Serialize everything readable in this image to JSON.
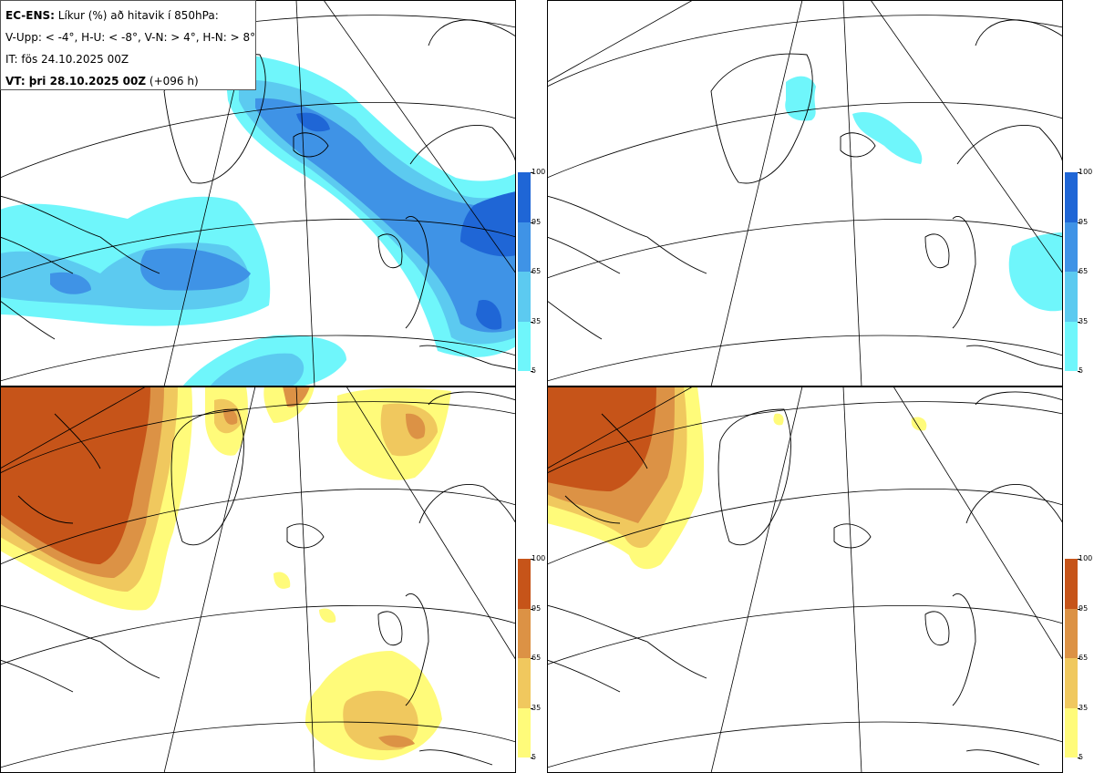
{
  "legend": {
    "line1_bold": "EC-ENS:",
    "line1_text": " Líkur (%) að hitavik í 850hPa:",
    "line2": "V-Upp: < -4°, H-U: < -8°, V-N: > 4°, H-N: > 8°",
    "line3": "IT: fös 24.10.2025 00Z",
    "line4_bold": "VT: þri 28.10.2025 00Z",
    "line4_text": " (+096 h)"
  },
  "panels": [
    {
      "id": "V-Upp",
      "description_color_scale": "cold",
      "threshold": "< -4°"
    },
    {
      "id": "H-U",
      "description_color_scale": "cold",
      "threshold": "< -8°"
    },
    {
      "id": "V-N",
      "description_color_scale": "warm",
      "threshold": "> 4°"
    },
    {
      "id": "H-N",
      "description_color_scale": "warm",
      "threshold": "> 8°"
    }
  ],
  "colorbar": {
    "ticks": [
      "100",
      "95",
      "65",
      "35",
      "5"
    ],
    "cold_colors": [
      "#1f66d6",
      "#3f93e6",
      "#5ccaf0",
      "#6ff6fb"
    ],
    "warm_colors": [
      "#c65419",
      "#dc9245",
      "#f0c85e",
      "#fffb7a"
    ]
  }
}
